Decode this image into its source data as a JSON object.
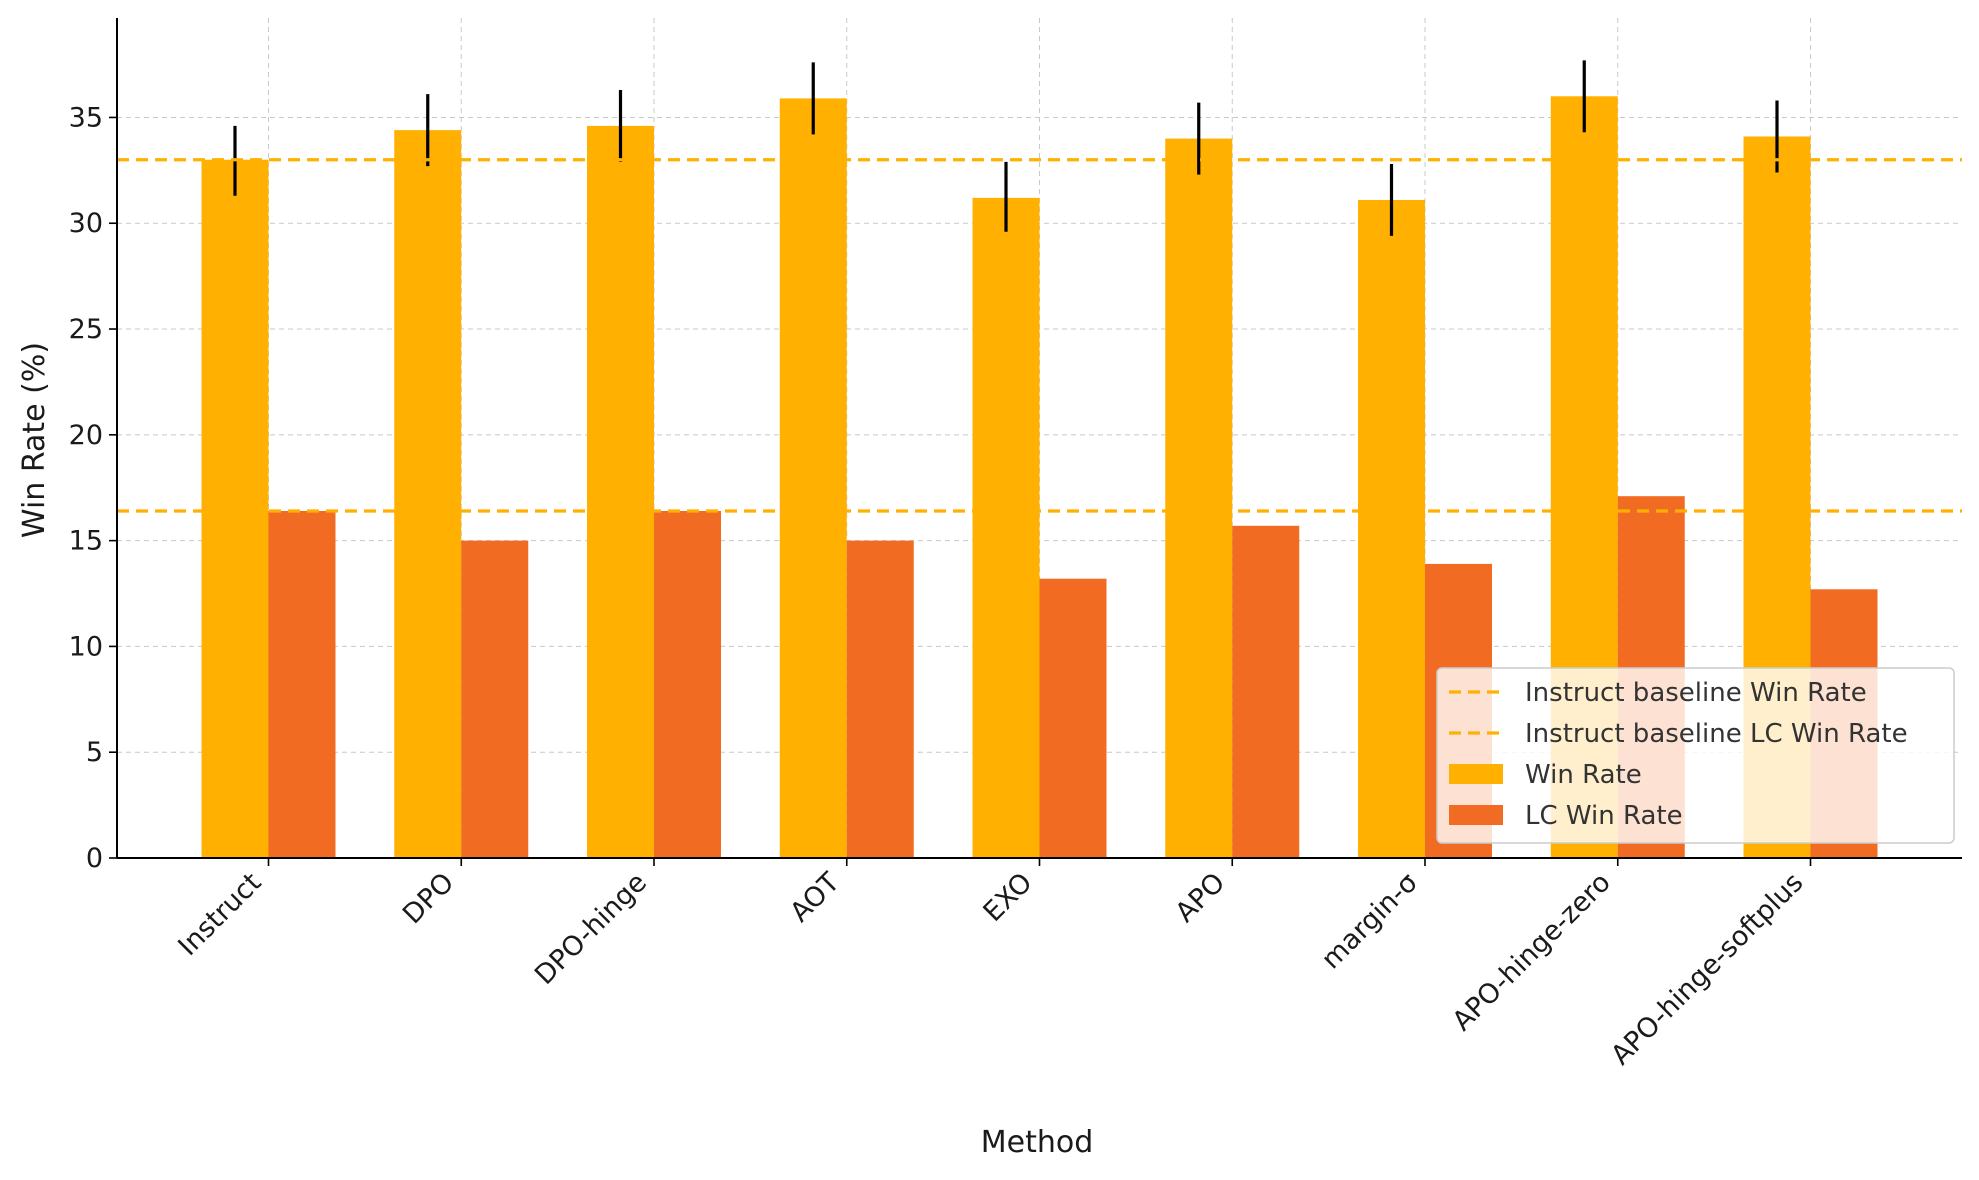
{
  "chart_data": {
    "type": "bar",
    "title": "",
    "xlabel": "Method",
    "ylabel": "Win Rate (%)",
    "ylim": [
      0,
      39.7
    ],
    "yticks": [
      0,
      5,
      10,
      15,
      20,
      25,
      30,
      35
    ],
    "grid": true,
    "categories": [
      "Instruct",
      "DPO",
      "DPO-hinge",
      "AOT",
      "EXO",
      "APO",
      "margin-σ",
      "APO-hinge-zero",
      "APO-hinge-softplus"
    ],
    "series": [
      {
        "name": "Win Rate",
        "color": "#FFB000",
        "values": [
          33.0,
          34.4,
          34.6,
          35.9,
          31.2,
          34.0,
          31.1,
          36.0,
          34.1
        ],
        "error_low": [
          31.3,
          32.7,
          32.9,
          34.2,
          29.6,
          32.3,
          29.4,
          34.3,
          32.4
        ],
        "error_high": [
          34.6,
          36.1,
          36.3,
          37.6,
          32.9,
          35.7,
          32.8,
          37.7,
          35.8
        ]
      },
      {
        "name": "LC Win Rate",
        "color": "#F26B22",
        "values": [
          16.4,
          15.0,
          16.4,
          15.0,
          13.2,
          15.7,
          13.9,
          17.1,
          12.7
        ]
      }
    ],
    "baselines": [
      {
        "name": "Instruct baseline Win Rate",
        "value": 33.0,
        "color": "#FFB000"
      },
      {
        "name": "Instruct baseline LC Win Rate",
        "value": 16.4,
        "color": "#FFB000"
      }
    ],
    "legend": {
      "position": "bottom-right",
      "entries": [
        {
          "label": "Instruct baseline Win Rate",
          "kind": "dashed",
          "color": "#FFB000"
        },
        {
          "label": "Instruct baseline LC Win Rate",
          "kind": "dashed",
          "color": "#FFB000"
        },
        {
          "label": "Win Rate",
          "kind": "patch",
          "color": "#FFB000"
        },
        {
          "label": "LC Win Rate",
          "kind": "patch",
          "color": "#F26B22"
        }
      ]
    }
  }
}
